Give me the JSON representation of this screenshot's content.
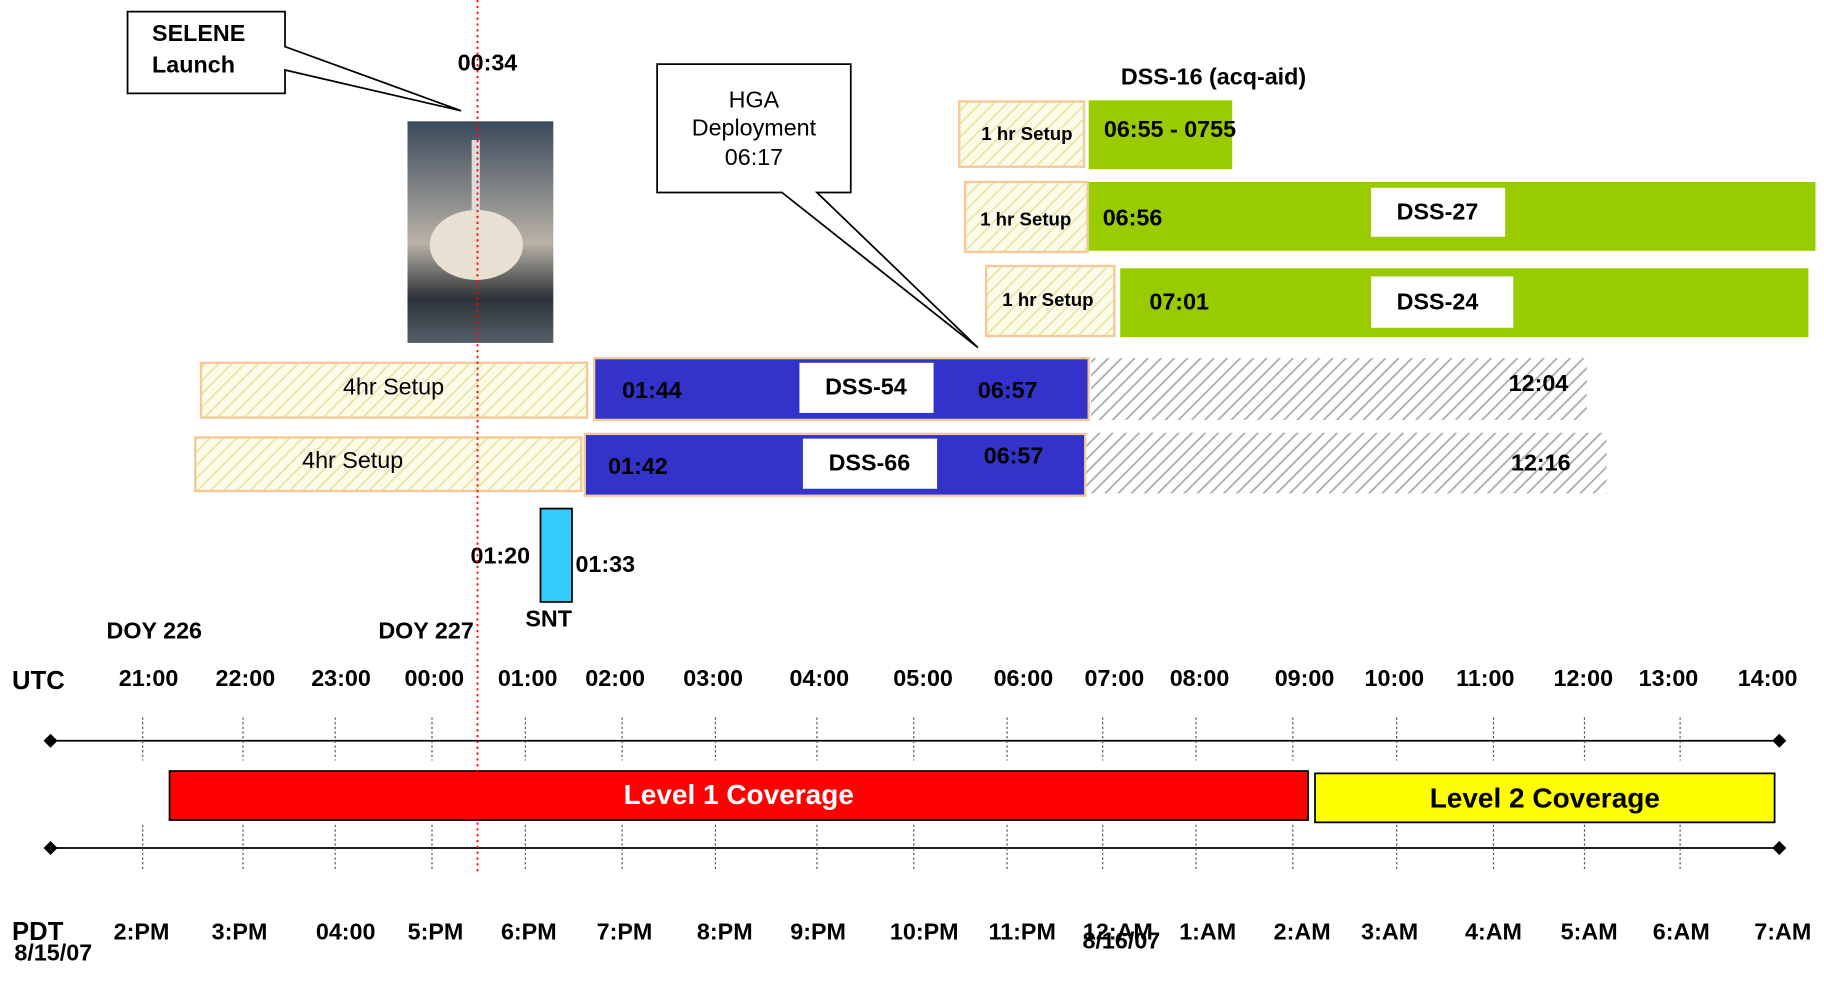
{
  "launch": {
    "callout": [
      "SELENE",
      "Launch"
    ],
    "time": "00:34"
  },
  "hga": {
    "callout": [
      "HGA",
      "Deployment",
      "06:17"
    ]
  },
  "dss16": {
    "title": "DSS-16 (acq-aid)",
    "setup": "1 hr Setup",
    "time": "06:55 - 0755"
  },
  "dss27": {
    "setup": "1 hr Setup",
    "start": "06:56",
    "label": "DSS-27"
  },
  "dss24": {
    "setup": "1 hr Setup",
    "start": "07:01",
    "label": "DSS-24"
  },
  "dss54": {
    "setup": "4hr Setup",
    "start": "01:44",
    "label": "DSS-54",
    "end": "06:57",
    "final": "12:04"
  },
  "dss66": {
    "setup": "4hr Setup",
    "start": "01:42",
    "label": "DSS-66",
    "end": "06:57",
    "final": "12:16"
  },
  "snt": {
    "start": "01:20",
    "end": "01:33",
    "label": "SNT"
  },
  "doy": [
    "DOY 226",
    "DOY 227"
  ],
  "utc": {
    "label": "UTC",
    "ticks": [
      "21:00",
      "22:00",
      "23:00",
      "00:00",
      "01:00",
      "02:00",
      "03:00",
      "04:00",
      "05:00",
      "06:00",
      "07:00",
      "08:00",
      "09:00",
      "10:00",
      "11:00",
      "12:00",
      "13:00",
      "14:00"
    ]
  },
  "coverage": [
    "Level 1 Coverage",
    "Level 2 Coverage"
  ],
  "pdt": {
    "label": "PDT",
    "ticks": [
      "2:PM",
      "3:PM",
      "04:00",
      "5:PM",
      "6:PM",
      "7:PM",
      "8:PM",
      "9:PM",
      "10:PM",
      "11:PM",
      "12:AM",
      "1:AM",
      "2:AM",
      "3:AM",
      "4:AM",
      "5:AM",
      "6:AM",
      "7:AM"
    ]
  },
  "dates": [
    "8/15/07",
    "8/16/07"
  ]
}
